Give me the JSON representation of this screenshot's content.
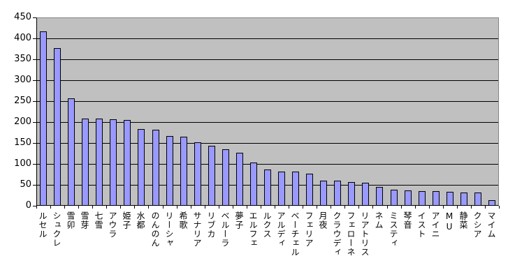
{
  "chart_data": {
    "type": "bar",
    "title": "",
    "xlabel": "",
    "ylabel": "",
    "categories": [
      "ルセル",
      "シュクレ",
      "雪卯",
      "雪芽",
      "七雪",
      "アウラ",
      "姫子",
      "水都",
      "のんのん",
      "リーシャ",
      "希歌",
      "サナリア",
      "リブカ",
      "ベルーラ",
      "夢子",
      "エルフェ",
      "ルクス",
      "アルディ",
      "ベーチェル",
      "フェリア",
      "月夜",
      "クラウディ",
      "フェローネ",
      "リアトリス",
      "ネム",
      "ミスティ",
      "琴音",
      "イスト",
      "アイニ",
      "MU",
      "静菜",
      "クシア",
      "マイム"
    ],
    "values": [
      417,
      377,
      256,
      208,
      208,
      207,
      205,
      183,
      182,
      167,
      165,
      151,
      143,
      135,
      127,
      103,
      87,
      82,
      81,
      77,
      60,
      60,
      57,
      55,
      45,
      38,
      37,
      35,
      35,
      33,
      32,
      32,
      13
    ],
    "ylim": [
      0,
      450
    ],
    "yticks": [
      0,
      50,
      100,
      150,
      200,
      250,
      300,
      350,
      400,
      450
    ],
    "grid": true,
    "legend": false,
    "colors": {
      "bar_fill": "#9999FF",
      "bar_border": "#000000",
      "plot_bg": "#C0C0C0",
      "plot_border": "#848284",
      "grid_color": "#000000",
      "axis_color": "#000000",
      "background": "#FFFFFF",
      "text": "#000000"
    }
  }
}
